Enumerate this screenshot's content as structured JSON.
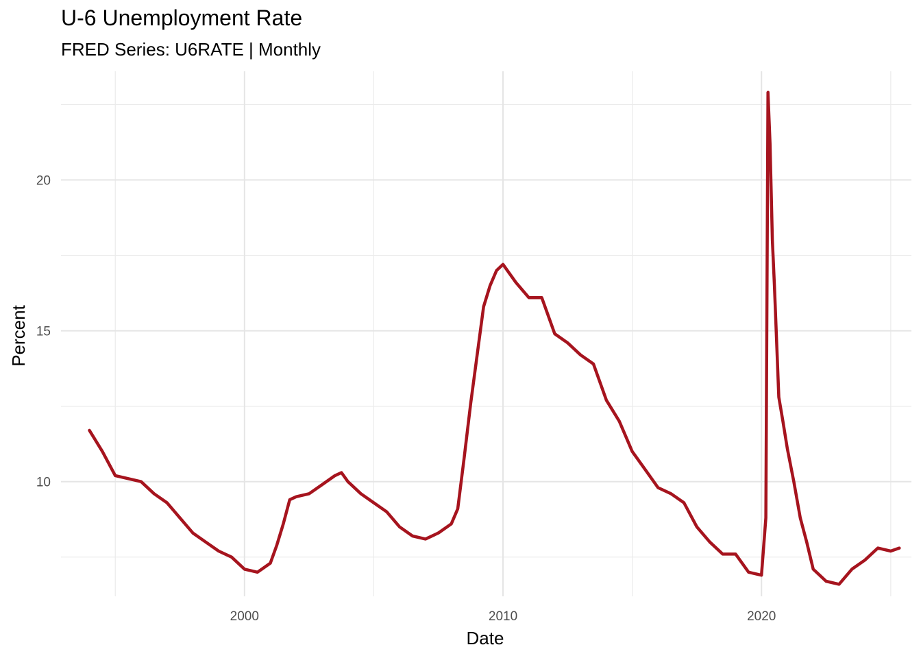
{
  "chart_data": {
    "type": "line",
    "title": "U‑6 Unemployment Rate",
    "subtitle": "FRED Series: U6RATE | Monthly",
    "xlabel": "Date",
    "ylabel": "Percent",
    "x_ticks": [
      "2000",
      "2010",
      "2020"
    ],
    "y_ticks": [
      "10",
      "15",
      "20"
    ],
    "xlim": [
      1992.9,
      2025.8
    ],
    "ylim": [
      6.2,
      23.6
    ],
    "grid": true,
    "line_color": "#a6141e",
    "series": [
      {
        "x": [
          1994.0,
          1994.5,
          1995.0,
          1995.5,
          1996.0,
          1996.5,
          1997.0,
          1997.5,
          1998.0,
          1998.5,
          1999.0,
          1999.5,
          2000.0,
          2000.5,
          2001.0,
          2001.25,
          2001.5,
          2001.75,
          2002.0,
          2002.5,
          2003.0,
          2003.5,
          2003.75,
          2004.0,
          2004.5,
          2005.0,
          2005.5,
          2006.0,
          2006.5,
          2007.0,
          2007.5,
          2008.0,
          2008.25,
          2008.5,
          2008.75,
          2009.0,
          2009.25,
          2009.5,
          2009.75,
          2010.0,
          2010.5,
          2011.0,
          2011.5,
          2012.0,
          2012.5,
          2013.0,
          2013.5,
          2014.0,
          2014.5,
          2015.0,
          2015.5,
          2016.0,
          2016.5,
          2017.0,
          2017.5,
          2018.0,
          2018.5,
          2019.0,
          2019.5,
          2020.0,
          2020.17,
          2020.25,
          2020.33,
          2020.42,
          2020.5,
          2020.67,
          2020.83,
          2021.0,
          2021.25,
          2021.5,
          2021.75,
          2022.0,
          2022.5,
          2023.0,
          2023.5,
          2024.0,
          2024.5,
          2025.0,
          2025.33
        ],
        "values": [
          11.7,
          11.0,
          10.2,
          10.1,
          10.0,
          9.6,
          9.3,
          8.8,
          8.3,
          8.0,
          7.7,
          7.5,
          7.1,
          7.0,
          7.3,
          7.9,
          8.6,
          9.4,
          9.5,
          9.6,
          9.9,
          10.2,
          10.3,
          10.0,
          9.6,
          9.3,
          9.0,
          8.5,
          8.2,
          8.1,
          8.3,
          8.6,
          9.1,
          10.8,
          12.6,
          14.2,
          15.8,
          16.5,
          17.0,
          17.2,
          16.6,
          16.1,
          16.1,
          14.9,
          14.6,
          14.2,
          13.9,
          12.7,
          12.0,
          11.0,
          10.4,
          9.8,
          9.6,
          9.3,
          8.5,
          8.0,
          7.6,
          7.6,
          7.0,
          6.9,
          8.8,
          22.9,
          21.2,
          18.0,
          16.5,
          12.8,
          12.0,
          11.1,
          10.0,
          8.8,
          8.0,
          7.1,
          6.7,
          6.6,
          7.1,
          7.4,
          7.8,
          7.7,
          7.8
        ]
      }
    ]
  }
}
